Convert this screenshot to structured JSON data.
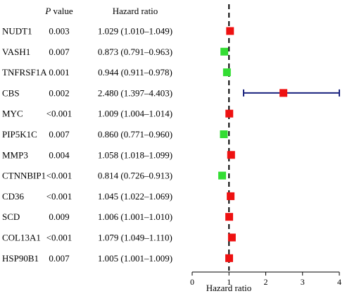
{
  "chart_data": {
    "type": "forest",
    "header": {
      "gene": "",
      "p_value_italic": "P",
      "p_value_rest": " value",
      "hr": "Hazard ratio"
    },
    "xlabel": "Hazard ratio",
    "xlim": [
      0,
      4
    ],
    "xticks": [
      0,
      1,
      2,
      3,
      4
    ],
    "reference_line": 1,
    "colors": {
      "risk": "#ee1111",
      "protective": "#33dd33",
      "ci": "#1a237e",
      "reference": "#000000"
    },
    "rows": [
      {
        "gene": "NUDT1",
        "p": "0.003",
        "hr_text": "1.029 (1.010–1.049)",
        "hr": 1.029,
        "lo": 1.01,
        "hi": 1.049
      },
      {
        "gene": "VASH1",
        "p": "0.007",
        "hr_text": "0.873 (0.791–0.963)",
        "hr": 0.873,
        "lo": 0.791,
        "hi": 0.963
      },
      {
        "gene": "TNFRSF1A",
        "p": "0.001",
        "hr_text": "0.944 (0.911–0.978)",
        "hr": 0.944,
        "lo": 0.911,
        "hi": 0.978
      },
      {
        "gene": "CBS",
        "p": "0.002",
        "hr_text": "2.480 (1.397–4.403)",
        "hr": 2.48,
        "lo": 1.397,
        "hi": 4.403
      },
      {
        "gene": "MYC",
        "p": "<0.001",
        "hr_text": "1.009 (1.004–1.014)",
        "hr": 1.009,
        "lo": 1.004,
        "hi": 1.014
      },
      {
        "gene": "PIP5K1C",
        "p": "0.007",
        "hr_text": "0.860 (0.771–0.960)",
        "hr": 0.86,
        "lo": 0.771,
        "hi": 0.96
      },
      {
        "gene": "MMP3",
        "p": "0.004",
        "hr_text": "1.058 (1.018–1.099)",
        "hr": 1.058,
        "lo": 1.018,
        "hi": 1.099
      },
      {
        "gene": "CTNNBIP1",
        "p": "<0.001",
        "hr_text": "0.814 (0.726–0.913)",
        "hr": 0.814,
        "lo": 0.726,
        "hi": 0.913
      },
      {
        "gene": "CD36",
        "p": "<0.001",
        "hr_text": "1.045 (1.022–1.069)",
        "hr": 1.045,
        "lo": 1.022,
        "hi": 1.069
      },
      {
        "gene": "SCD",
        "p": "0.009",
        "hr_text": "1.006 (1.001–1.010)",
        "hr": 1.006,
        "lo": 1.001,
        "hi": 1.01
      },
      {
        "gene": "COL13A1",
        "p": "<0.001",
        "hr_text": "1.079 (1.049–1.110)",
        "hr": 1.079,
        "lo": 1.049,
        "hi": 1.11
      },
      {
        "gene": "HSP90B1",
        "p": "0.007",
        "hr_text": "1.005 (1.001–1.009)",
        "hr": 1.005,
        "lo": 1.001,
        "hi": 1.009
      }
    ]
  }
}
